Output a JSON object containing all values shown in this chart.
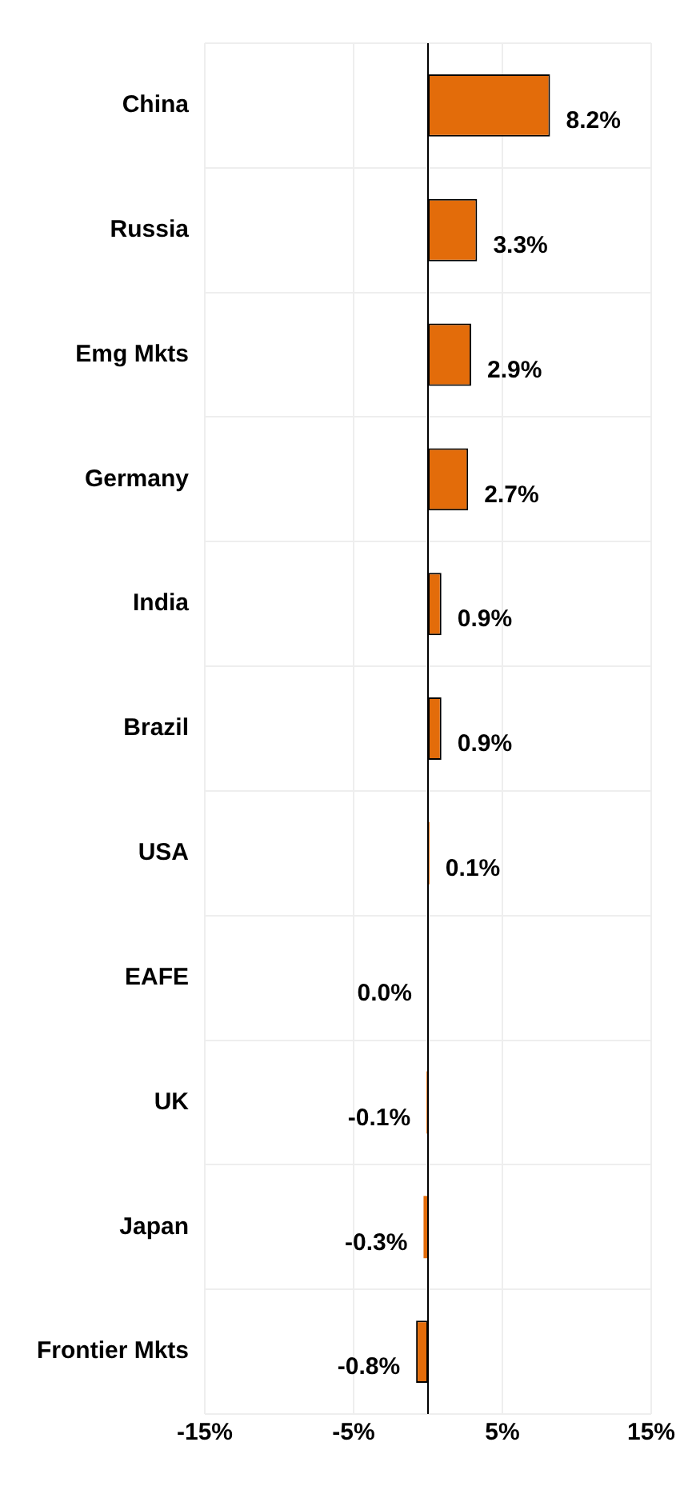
{
  "chart_data": {
    "type": "bar",
    "orientation": "horizontal",
    "categories": [
      "China",
      "Russia",
      "Emg Mkts",
      "Germany",
      "India",
      "Brazil",
      "USA",
      "EAFE",
      "UK",
      "Japan",
      "Frontier Mkts"
    ],
    "values": [
      8.2,
      3.3,
      2.9,
      2.7,
      0.9,
      0.9,
      0.1,
      0.0,
      -0.1,
      -0.3,
      -0.8
    ],
    "value_labels": [
      "8.2%",
      "3.3%",
      "2.9%",
      "2.7%",
      "0.9%",
      "0.9%",
      "0.1%",
      "0.0%",
      "-0.1%",
      "-0.3%",
      "-0.8%"
    ],
    "color": "#e36c0a",
    "xlim": [
      -15,
      15
    ],
    "xticks": [
      {
        "value": -15,
        "label": "-15%"
      },
      {
        "value": -5,
        "label": "-5%"
      },
      {
        "value": 5,
        "label": "5%"
      },
      {
        "value": 15,
        "label": "15%"
      }
    ],
    "grid": true
  }
}
